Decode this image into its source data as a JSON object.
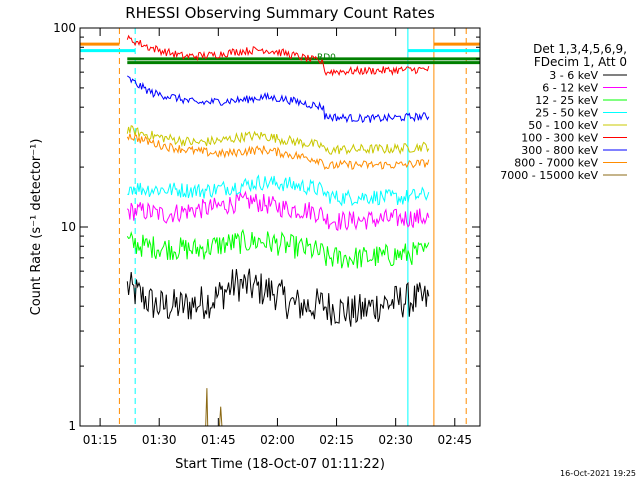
{
  "chart_data": {
    "type": "line",
    "title": "RHESSI Observing Summary Count Rates",
    "xlabel": "Start Time (18-Oct-07 01:11:22)",
    "ylabel": "Count Rate (s⁻¹ detector⁻¹)",
    "y_scale": "log",
    "ylim": [
      1,
      100
    ],
    "xlim_minutes": [
      -1.5,
      100
    ],
    "x_ticks": [
      {
        "min": 3.6,
        "label": "01:15"
      },
      {
        "min": 18.6,
        "label": "01:30"
      },
      {
        "min": 33.6,
        "label": "01:45"
      },
      {
        "min": 48.6,
        "label": "02:00"
      },
      {
        "min": 63.6,
        "label": "02:15"
      },
      {
        "min": 78.6,
        "label": "02:30"
      },
      {
        "min": 93.6,
        "label": "02:45"
      }
    ],
    "y_ticks": [
      {
        "value": 1,
        "label": "1"
      },
      {
        "value": 10,
        "label": "10"
      },
      {
        "value": 100,
        "label": "100"
      }
    ],
    "legend_header": [
      "Det 1,3,4,5,6,9,",
      "FDecim 1, Att 0"
    ],
    "annotation": "RD0",
    "footer_date": "16-Oct-2021 19:25",
    "vertical_markers": [
      {
        "min": 8.5,
        "color": "#ff8c00",
        "style": "dashed"
      },
      {
        "min": 12.5,
        "color": "#00ffff",
        "style": "dashed"
      },
      {
        "min": 81.7,
        "color": "#00ffff",
        "style": "solid"
      },
      {
        "min": 88.3,
        "color": "#ff8c00",
        "style": "solid"
      },
      {
        "min": 96.5,
        "color": "#ff8c00",
        "style": "dashed"
      }
    ],
    "status_bars": [
      {
        "color": "#ff8c00",
        "start": -1.5,
        "end": 8.5,
        "y": 83
      },
      {
        "color": "#00ffff",
        "start": -1.5,
        "end": 12.5,
        "y": 77
      },
      {
        "color": "#00ffff",
        "start": 81.7,
        "end": 100,
        "y": 77
      },
      {
        "color": "#ff8c00",
        "start": 88.3,
        "end": 100,
        "y": 83
      },
      {
        "color": "#008000",
        "start": 10.5,
        "end": 100,
        "y": 70
      },
      {
        "color": "#008000",
        "start": 10.5,
        "end": 100,
        "y": 67
      }
    ],
    "series": [
      {
        "name": "3 - 6 keV",
        "color": "#000000",
        "noise": 0.09,
        "x": [
          10.5,
          11,
          18,
          25,
          32,
          38,
          42,
          48,
          52,
          57,
          60.5,
          60.6,
          63,
          68,
          75,
          82,
          87
        ],
        "values": [
          5.0,
          4.9,
          4.0,
          4.0,
          4.3,
          5.2,
          5.0,
          4.7,
          4.1,
          4.0,
          4.1,
          4.0,
          3.9,
          3.7,
          4.1,
          4.3,
          4.3
        ]
      },
      {
        "name": "6 - 12 keV",
        "color": "#ff00ff",
        "noise": 0.05,
        "x": [
          10.5,
          15,
          20,
          25,
          32,
          38,
          42,
          48,
          52,
          57,
          60.5,
          60.6,
          64,
          70,
          78,
          87
        ],
        "values": [
          12.0,
          12.0,
          11.5,
          12.0,
          12.5,
          13.2,
          13.5,
          12.7,
          12.3,
          12.1,
          11.5,
          11.0,
          10.7,
          10.8,
          11.0,
          11.2
        ]
      },
      {
        "name": "12 - 25 keV",
        "color": "#00ff00",
        "noise": 0.06,
        "x": [
          10.5,
          15,
          22,
          28,
          35,
          40,
          45,
          52,
          57,
          60.5,
          60.6,
          64,
          70,
          78,
          87
        ],
        "values": [
          8.4,
          8.0,
          7.8,
          7.7,
          8.2,
          8.4,
          8.5,
          8.0,
          7.7,
          7.3,
          7.0,
          7.0,
          7.0,
          7.2,
          7.5
        ]
      },
      {
        "name": "25 - 50 keV",
        "color": "#00ffff",
        "noise": 0.04,
        "x": [
          10.5,
          15,
          22,
          30,
          38,
          44,
          50,
          57,
          60.5,
          60.6,
          64,
          72,
          80,
          87
        ],
        "values": [
          16.0,
          15.5,
          15.4,
          15.2,
          16.0,
          16.8,
          16.5,
          15.8,
          15.2,
          14.5,
          14.0,
          14.2,
          14.0,
          14.6
        ]
      },
      {
        "name": "50 - 100 keV",
        "color": "#c8c800",
        "noise": 0.025,
        "x": [
          10.5,
          14,
          20,
          28,
          35,
          40,
          45,
          50,
          55,
          60.5,
          60.6,
          64,
          72,
          80,
          87
        ],
        "values": [
          31.0,
          29.5,
          28.0,
          26.5,
          27.3,
          28.5,
          28.8,
          27.5,
          26.5,
          25.5,
          24.0,
          24.5,
          24.6,
          24.8,
          25.5
        ]
      },
      {
        "name": "100 - 300 keV",
        "color": "#ff0000",
        "noise": 0.02,
        "x": [
          10.5,
          13,
          16,
          20,
          25,
          32,
          38,
          45,
          50,
          55,
          60.5,
          60.6,
          64,
          72,
          80,
          87
        ],
        "values": [
          88.0,
          85.0,
          80.0,
          76.0,
          72.0,
          73.0,
          76.0,
          78.0,
          75.0,
          71.0,
          67.0,
          60.0,
          60.5,
          61.0,
          61.5,
          62.0
        ]
      },
      {
        "name": "300 - 800 keV",
        "color": "#0000ff",
        "noise": 0.02,
        "x": [
          10.5,
          13,
          17,
          22,
          28,
          34,
          40,
          45,
          50,
          55,
          60.5,
          60.6,
          64,
          72,
          80,
          87
        ],
        "values": [
          56.0,
          52.0,
          47.0,
          45.0,
          42.0,
          42.8,
          43.5,
          45.0,
          44.0,
          42.0,
          40.0,
          36.0,
          35.5,
          35.0,
          35.5,
          36.0
        ]
      },
      {
        "name": "800 - 7000 keV",
        "color": "#ff8c00",
        "noise": 0.022,
        "x": [
          10.5,
          14,
          20,
          28,
          35,
          40,
          45,
          50,
          55,
          60.5,
          60.6,
          64,
          72,
          80,
          87
        ],
        "values": [
          29.0,
          27.5,
          25.5,
          24.0,
          23.3,
          24.0,
          24.5,
          23.5,
          22.5,
          21.5,
          20.0,
          20.5,
          20.5,
          20.5,
          21.0
        ]
      },
      {
        "name": "7000 - 15000 keV",
        "color": "#8b6914",
        "noise": 0.0,
        "x": [
          30.4,
          30.7,
          30.9,
          33.9,
          34.2,
          34.5
        ],
        "values": [
          1.0,
          1.55,
          1.0,
          1.0,
          1.25,
          1.0
        ]
      }
    ]
  }
}
